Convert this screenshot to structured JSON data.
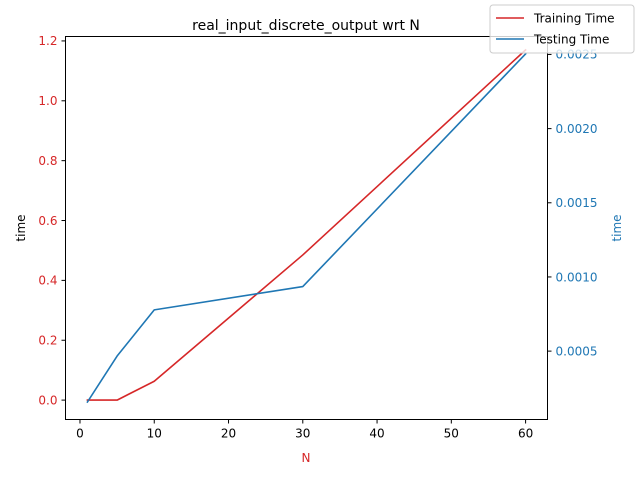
{
  "chart_data": {
    "type": "line",
    "title": "real_input_discrete_output wrt N",
    "xlabel": "N",
    "ylabel_left": "time",
    "ylabel_right": "time",
    "xlim": [
      -1.95,
      62.95
    ],
    "ylim_left": [
      -0.0648,
      1.2148
    ],
    "ylim_right": [
      3.9e-05,
      0.002621
    ],
    "x_ticks": [
      0,
      10,
      20,
      30,
      40,
      50,
      60
    ],
    "x_tick_labels": [
      "0",
      "10",
      "20",
      "30",
      "40",
      "50",
      "60"
    ],
    "y_left_ticks": [
      0.0,
      0.2,
      0.4,
      0.6,
      0.8,
      1.0,
      1.2
    ],
    "y_left_tick_labels": [
      "0.0",
      "0.2",
      "0.4",
      "0.6",
      "0.8",
      "1.0",
      "1.2"
    ],
    "y_right_ticks": [
      0.0005,
      0.001,
      0.0015,
      0.002,
      0.0025
    ],
    "y_right_tick_labels": [
      "0.0005",
      "0.0010",
      "0.0015",
      "0.0020",
      "0.0025"
    ],
    "legend_position": "top-right",
    "series": [
      {
        "name": "Training Time",
        "axis": "left",
        "color": "#d62728",
        "x": [
          1,
          5,
          10,
          30,
          60
        ],
        "values": [
          0.0,
          0.0,
          0.063,
          0.485,
          1.17
        ]
      },
      {
        "name": "Testing Time",
        "axis": "right",
        "color": "#1f77b4",
        "x": [
          1,
          5,
          10,
          30,
          60
        ],
        "values": [
          0.000157,
          0.000467,
          0.000778,
          0.000935,
          0.002504
        ]
      }
    ],
    "colors": {
      "left_axis_text": "#d62728",
      "right_axis_text": "#1f77b4",
      "axis_frame": "#000000"
    }
  }
}
